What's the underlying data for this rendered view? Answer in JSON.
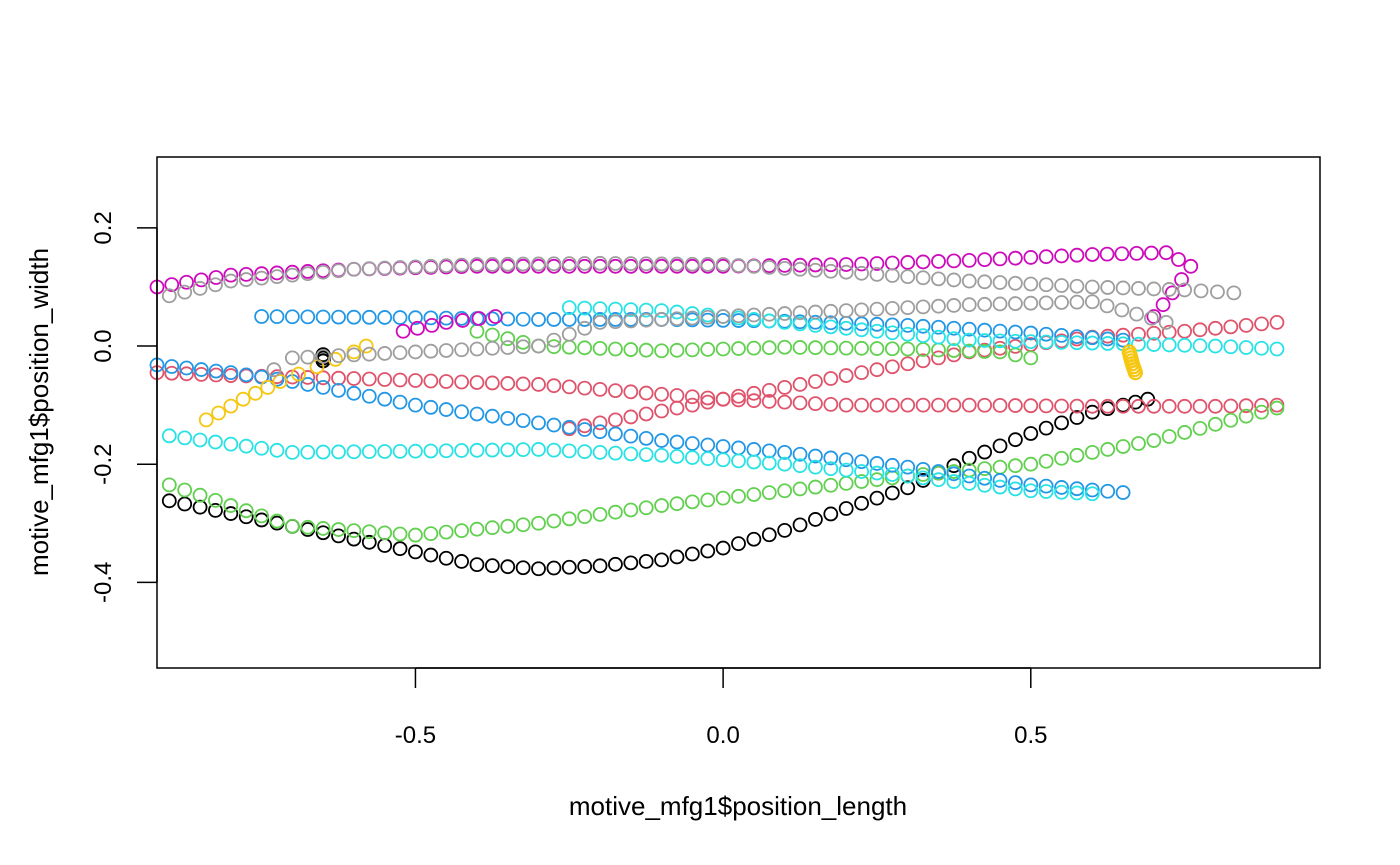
{
  "chart_data": {
    "type": "scatter",
    "title": "",
    "xlabel": "motive_mfg1$position_length",
    "ylabel": "motive_mfg1$position_width",
    "xlim": [
      -0.92,
      0.97
    ],
    "ylim": [
      -0.545,
      0.32
    ],
    "xticks": [
      -0.5,
      0.0,
      0.5
    ],
    "xtick_labels": [
      "-0.5",
      "0.0",
      "0.5"
    ],
    "yticks": [
      -0.4,
      -0.2,
      0.0,
      0.2
    ],
    "ytick_labels": [
      "-0.4",
      "-0.2",
      "0.0",
      "0.2"
    ],
    "grid": false,
    "legend": "none",
    "marker": "open-circle",
    "series": [
      {
        "color": "#000000",
        "points": [
          [
            -0.9,
            -0.262
          ],
          [
            -0.4,
            -0.37
          ],
          [
            -0.3,
            -0.377
          ],
          [
            -0.2,
            -0.372
          ],
          [
            -0.1,
            -0.362
          ],
          [
            0.0,
            -0.342
          ],
          [
            0.1,
            -0.312
          ],
          [
            0.2,
            -0.275
          ],
          [
            0.3,
            -0.24
          ],
          [
            0.4,
            -0.19
          ],
          [
            0.5,
            -0.148
          ],
          [
            0.6,
            -0.112
          ],
          [
            0.65,
            -0.1
          ],
          [
            0.69,
            -0.09
          ]
        ],
        "extra": [
          [
            -0.65,
            -0.015
          ],
          [
            -0.65,
            -0.025
          ]
        ]
      },
      {
        "color": "#DF536B",
        "points": [
          [
            -0.92,
            -0.045
          ],
          [
            -0.8,
            -0.05
          ],
          [
            -0.6,
            -0.055
          ],
          [
            -0.3,
            -0.065
          ],
          [
            0.0,
            -0.09
          ],
          [
            0.2,
            -0.1
          ],
          [
            0.4,
            -0.1
          ],
          [
            0.6,
            -0.102
          ],
          [
            0.8,
            -0.102
          ],
          [
            0.9,
            -0.1
          ]
        ],
        "branch": [
          [
            -0.25,
            -0.14
          ],
          [
            -0.15,
            -0.12
          ],
          [
            0.0,
            -0.09
          ],
          [
            0.2,
            -0.05
          ],
          [
            0.4,
            -0.01
          ],
          [
            0.6,
            0.015
          ],
          [
            0.75,
            0.025
          ],
          [
            0.9,
            0.04
          ]
        ]
      },
      {
        "color": "#61D04F",
        "points": [
          [
            -0.9,
            -0.235
          ],
          [
            -0.7,
            -0.305
          ],
          [
            -0.5,
            -0.32
          ],
          [
            -0.3,
            -0.3
          ],
          [
            -0.1,
            -0.27
          ],
          [
            0.1,
            -0.245
          ],
          [
            0.3,
            -0.22
          ],
          [
            0.5,
            -0.2
          ],
          [
            0.7,
            -0.16
          ],
          [
            0.9,
            -0.105
          ]
        ],
        "branch": [
          [
            -0.4,
            0.025
          ],
          [
            -0.3,
            0.0
          ],
          [
            -0.1,
            -0.008
          ],
          [
            0.1,
            -0.002
          ],
          [
            0.3,
            -0.005
          ],
          [
            0.45,
            -0.01
          ],
          [
            0.5,
            -0.02
          ]
        ]
      },
      {
        "color": "#2297E6",
        "points": [
          [
            -0.92,
            -0.032
          ],
          [
            -0.8,
            -0.045
          ],
          [
            -0.7,
            -0.06
          ],
          [
            -0.5,
            -0.1
          ],
          [
            -0.3,
            -0.13
          ],
          [
            -0.1,
            -0.16
          ],
          [
            0.1,
            -0.18
          ],
          [
            0.3,
            -0.205
          ],
          [
            0.5,
            -0.235
          ],
          [
            0.65,
            -0.248
          ]
        ],
        "branch": [
          [
            -0.75,
            0.05
          ],
          [
            -0.5,
            0.048
          ],
          [
            -0.3,
            0.045
          ],
          [
            -0.1,
            0.045
          ],
          [
            0.1,
            0.042
          ],
          [
            0.3,
            0.035
          ],
          [
            0.5,
            0.022
          ],
          [
            0.65,
            0.01
          ]
        ]
      },
      {
        "color": "#28E2E5",
        "points": [
          [
            -0.9,
            -0.152
          ],
          [
            -0.7,
            -0.18
          ],
          [
            -0.5,
            -0.178
          ],
          [
            -0.3,
            -0.175
          ],
          [
            -0.1,
            -0.185
          ],
          [
            0.1,
            -0.2
          ],
          [
            0.3,
            -0.22
          ],
          [
            0.5,
            -0.245
          ],
          [
            0.6,
            -0.25
          ]
        ],
        "branch": [
          [
            -0.25,
            0.065
          ],
          [
            -0.1,
            0.06
          ],
          [
            0.0,
            0.05
          ],
          [
            0.2,
            0.03
          ],
          [
            0.4,
            0.01
          ],
          [
            0.6,
            0.005
          ],
          [
            0.8,
            0.0
          ],
          [
            0.9,
            -0.005
          ]
        ]
      },
      {
        "color": "#CD0BBC",
        "points": [
          [
            -0.92,
            0.1
          ],
          [
            -0.8,
            0.12
          ],
          [
            -0.6,
            0.13
          ],
          [
            -0.4,
            0.135
          ],
          [
            -0.2,
            0.135
          ],
          [
            0.0,
            0.135
          ],
          [
            0.2,
            0.138
          ],
          [
            0.4,
            0.145
          ],
          [
            0.6,
            0.155
          ],
          [
            0.72,
            0.158
          ],
          [
            0.76,
            0.135
          ],
          [
            0.73,
            0.09
          ],
          [
            0.7,
            0.05
          ]
        ],
        "branch": [
          [
            -0.52,
            0.025
          ],
          [
            -0.45,
            0.04
          ],
          [
            -0.37,
            0.05
          ]
        ]
      },
      {
        "color": "#F5C710",
        "points": [
          [
            -0.84,
            -0.125
          ],
          [
            -0.78,
            -0.09
          ],
          [
            -0.72,
            -0.06
          ],
          [
            -0.66,
            -0.035
          ],
          [
            -0.6,
            -0.01
          ],
          [
            -0.58,
            0.0
          ]
        ],
        "extra": [
          [
            0.66,
            -0.01
          ],
          [
            0.665,
            -0.03
          ],
          [
            0.67,
            -0.045
          ]
        ]
      },
      {
        "color": "#9E9E9E",
        "points": [
          [
            -0.9,
            0.085
          ],
          [
            -0.8,
            0.11
          ],
          [
            -0.6,
            0.13
          ],
          [
            -0.4,
            0.138
          ],
          [
            -0.2,
            0.14
          ],
          [
            0.0,
            0.138
          ],
          [
            0.2,
            0.125
          ],
          [
            0.4,
            0.11
          ],
          [
            0.6,
            0.1
          ],
          [
            0.75,
            0.095
          ],
          [
            0.83,
            0.09
          ]
        ],
        "branch": [
          [
            0.72,
            0.04
          ],
          [
            0.6,
            0.075
          ],
          [
            0.4,
            0.07
          ],
          [
            0.2,
            0.06
          ],
          [
            0.0,
            0.05
          ],
          [
            -0.2,
            0.04
          ],
          [
            -0.3,
            0.0
          ],
          [
            -0.5,
            -0.01
          ],
          [
            -0.7,
            -0.02
          ],
          [
            -0.73,
            -0.04
          ]
        ]
      }
    ]
  }
}
